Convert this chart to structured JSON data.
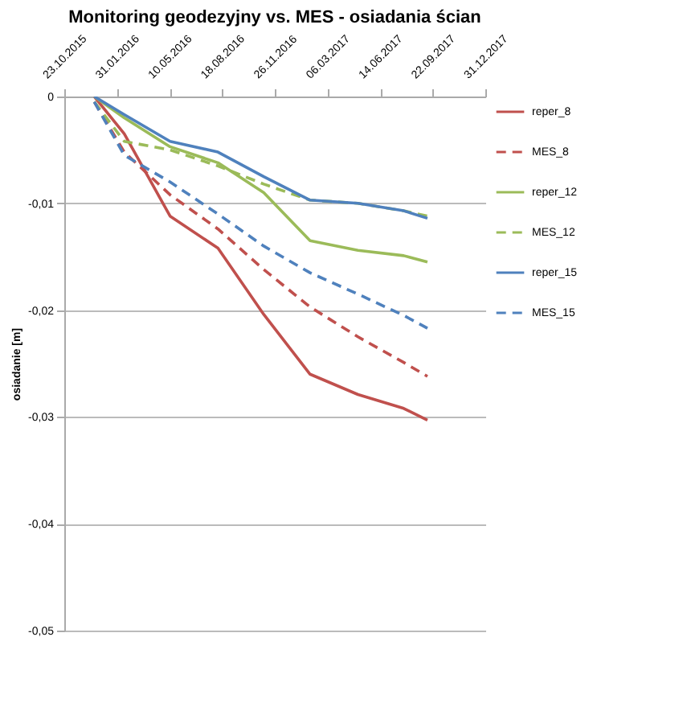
{
  "chart_data": {
    "type": "line",
    "title": "Monitoring geodezyjny vs. MES - osiadania ścian",
    "ylabel": "osiadanie [m]",
    "x": [
      "2015-12-19",
      "2016-02-14",
      "2016-05-11",
      "2016-08-10",
      "2016-11-05",
      "2017-02-01",
      "2017-05-03",
      "2017-07-29",
      "2017-09-12"
    ],
    "series": [
      {
        "name": "reper_8",
        "color": "#c0504d",
        "line_style": "solid",
        "values": [
          0,
          -0.0035,
          -0.0112,
          -0.0142,
          -0.0204,
          -0.026,
          -0.0279,
          -0.0292,
          -0.0303
        ]
      },
      {
        "name": "MES_8",
        "color": "#c0504d",
        "line_style": "dashed",
        "values": [
          -0.0005,
          -0.0052,
          -0.0092,
          -0.0124,
          -0.0162,
          -0.0197,
          -0.0225,
          -0.0249,
          -0.0262
        ]
      },
      {
        "name": "reper_12",
        "color": "#9bbb59",
        "line_style": "solid",
        "values": [
          0,
          -0.002,
          -0.0047,
          -0.0062,
          -0.009,
          -0.0135,
          -0.0144,
          -0.0149,
          -0.0155
        ]
      },
      {
        "name": "MES_12",
        "color": "#9bbb59",
        "line_style": "dashed",
        "values": [
          -0.0005,
          -0.0042,
          -0.005,
          -0.0065,
          -0.0082,
          -0.0097,
          -0.01,
          -0.0107,
          -0.0112
        ]
      },
      {
        "name": "reper_15",
        "color": "#4f81bd",
        "line_style": "solid",
        "values": [
          0,
          -0.0017,
          -0.0042,
          -0.0052,
          -0.0075,
          -0.0097,
          -0.01,
          -0.0107,
          -0.0114
        ]
      },
      {
        "name": "MES_15",
        "color": "#4f81bd",
        "line_style": "dashed",
        "values": [
          -0.0005,
          -0.0055,
          -0.008,
          -0.011,
          -0.014,
          -0.0165,
          -0.0185,
          -0.0205,
          -0.0217
        ]
      }
    ],
    "xlim": [
      "2015-10-23",
      "2017-12-31"
    ],
    "xticks": [
      {
        "value": "2015-10-23",
        "label": "23.10.2015"
      },
      {
        "value": "2016-01-31",
        "label": "31.01.2016"
      },
      {
        "value": "2016-05-10",
        "label": "10.05.2016"
      },
      {
        "value": "2016-08-18",
        "label": "18.08.2016"
      },
      {
        "value": "2016-11-26",
        "label": "26.11.2016"
      },
      {
        "value": "2017-03-06",
        "label": "06.03.2017"
      },
      {
        "value": "2017-06-14",
        "label": "14.06.2017"
      },
      {
        "value": "2017-09-22",
        "label": "22.09.2017"
      },
      {
        "value": "2017-12-31",
        "label": "31.12.2017"
      }
    ],
    "ylim": [
      -0.05,
      0
    ],
    "yticks": [
      {
        "value": 0,
        "label": "0"
      },
      {
        "value": -0.01,
        "label": "-0,01"
      },
      {
        "value": -0.02,
        "label": "-0,02"
      },
      {
        "value": -0.03,
        "label": "-0,03"
      },
      {
        "value": -0.04,
        "label": "-0,04"
      },
      {
        "value": -0.05,
        "label": "-0,05"
      }
    ],
    "grid": "y",
    "legend": "right"
  }
}
